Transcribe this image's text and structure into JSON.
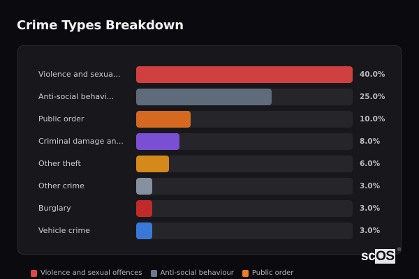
{
  "title": "Crime Types Breakdown",
  "chart_data": {
    "type": "bar",
    "orientation": "horizontal",
    "title": "Crime Types Breakdown",
    "categories": [
      "Violence and sexual offences",
      "Anti-social behaviour",
      "Public order",
      "Criminal damage and arson",
      "Other theft",
      "Other crime",
      "Burglary",
      "Vehicle crime"
    ],
    "display_labels": [
      "Violence and sexua...",
      "Anti-social behavi...",
      "Public order",
      "Criminal damage an...",
      "Other theft",
      "Other crime",
      "Burglary",
      "Vehicle crime"
    ],
    "values": [
      40.0,
      25.0,
      10.0,
      8.0,
      6.0,
      3.0,
      3.0,
      3.0
    ],
    "value_labels": [
      "40.0%",
      "25.0%",
      "10.0%",
      "8.0%",
      "6.0%",
      "3.0%",
      "3.0%",
      "3.0%"
    ],
    "colors": [
      "#d04040",
      "#5f6b7b",
      "#d4691f",
      "#7b4fd4",
      "#d4891a",
      "#8590a0",
      "#c02a2a",
      "#3a78d8"
    ],
    "xlim": [
      0,
      40
    ],
    "unit": "%",
    "grid": false,
    "legend_position": "bottom"
  },
  "legend": [
    {
      "label": "Violence and sexual offences",
      "color": "#e04848"
    },
    {
      "label": "Anti-social behaviour",
      "color": "#6b7890"
    },
    {
      "label": "Public order",
      "color": "#f07a20"
    }
  ],
  "logo": {
    "prefix": "sc",
    "highlight": "OS",
    "mark": "®"
  }
}
